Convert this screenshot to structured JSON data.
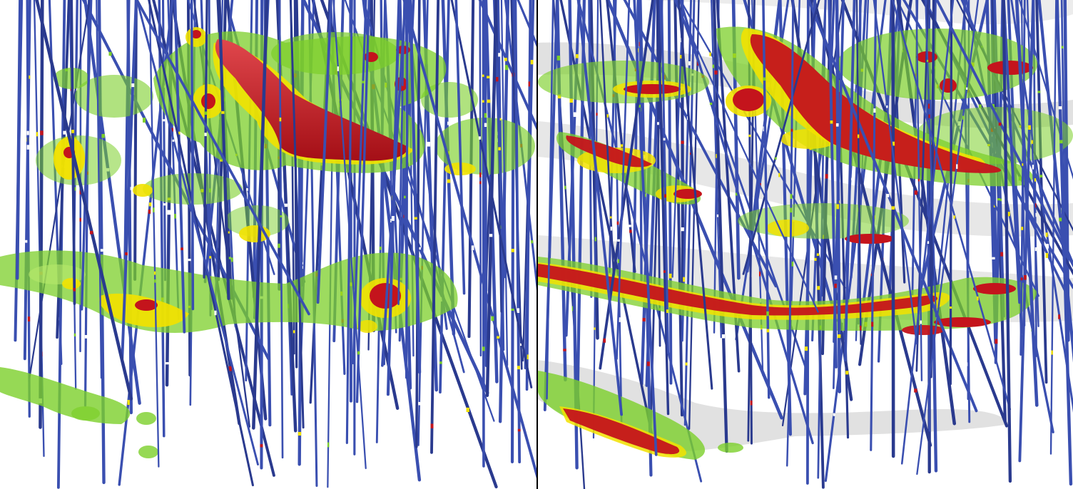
{
  "scene": {
    "panels": [
      {
        "id": "left",
        "view": "grade-shells-only"
      },
      {
        "id": "right",
        "view": "grade-shells-with-surfaces"
      }
    ],
    "colors": {
      "background": "#ffffff",
      "drillhole": "#3a4fb0",
      "drillhole_dark": "#2a3a8e",
      "shell_low": "#7ccf2a",
      "shell_low_light": "#b6e86a",
      "shell_mid": "#f2e200",
      "shell_high": "#c4141c",
      "shell_high_light": "#e0474c",
      "surface_gray": "#c9c9c9",
      "divider": "#000000"
    },
    "legend_order": [
      "low-grade-green",
      "medium-grade-yellow",
      "high-grade-red"
    ]
  }
}
